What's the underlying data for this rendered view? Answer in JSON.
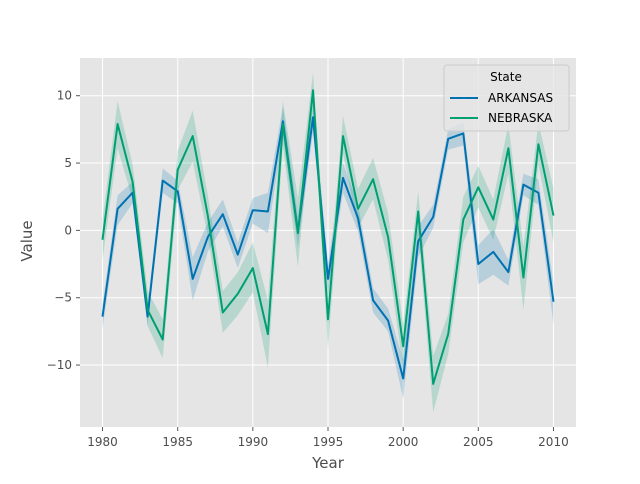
{
  "chart_data": {
    "type": "line",
    "xlabel": "Year",
    "ylabel": "Value",
    "xlim": [
      1978.5,
      2011.5
    ],
    "ylim": [
      -14.6,
      12.8
    ],
    "xticks": [
      1980,
      1985,
      1990,
      1995,
      2000,
      2005,
      2010
    ],
    "yticks": [
      -10,
      -5,
      0,
      5,
      10
    ],
    "ytick_labels": [
      "−10",
      "−5",
      "0",
      "5",
      "10"
    ],
    "grid": true,
    "legend": {
      "title": "State",
      "placement": "top-right"
    },
    "x": [
      1980,
      1981,
      1982,
      1983,
      1984,
      1985,
      1986,
      1987,
      1988,
      1989,
      1990,
      1991,
      1992,
      1993,
      1994,
      1995,
      1996,
      1997,
      1998,
      1999,
      2000,
      2001,
      2002,
      2003,
      2004,
      2005,
      2006,
      2007,
      2008,
      2009,
      2010
    ],
    "series": [
      {
        "name": "ARKANSAS",
        "color": "#0072b2",
        "values": [
          -6.4,
          1.6,
          2.8,
          -6.4,
          3.7,
          2.9,
          -3.6,
          -0.5,
          1.2,
          -1.8,
          1.5,
          1.4,
          8.1,
          -0.1,
          8.4,
          -3.6,
          3.9,
          0.9,
          -5.2,
          -6.7,
          -11.0,
          -0.8,
          1.0,
          6.8,
          7.2,
          -2.5,
          -1.6,
          -3.1,
          3.4,
          2.8,
          -5.3
        ],
        "lower": [
          -7.3,
          0.4,
          2.0,
          -7.1,
          2.8,
          2.0,
          -5.2,
          -1.6,
          0.3,
          -2.8,
          0.5,
          -0.2,
          7.0,
          -1.3,
          7.3,
          -4.6,
          2.8,
          -0.1,
          -6.1,
          -7.5,
          -12.5,
          -2.0,
          0.2,
          6.0,
          6.3,
          -4.0,
          -3.3,
          -4.1,
          2.6,
          1.9,
          -7.0
        ],
        "upper": [
          -5.5,
          2.6,
          3.6,
          -5.6,
          4.6,
          3.7,
          -2.0,
          0.6,
          2.3,
          -0.9,
          2.4,
          2.8,
          9.2,
          1.0,
          9.4,
          -2.5,
          5.0,
          1.9,
          -4.3,
          -5.8,
          -9.6,
          0.3,
          1.9,
          7.5,
          8.0,
          -1.1,
          0.1,
          -2.2,
          4.2,
          3.8,
          -3.9
        ]
      },
      {
        "name": "NEBRASKA",
        "color": "#009e73",
        "values": [
          -0.7,
          7.9,
          3.6,
          -5.9,
          -8.1,
          4.5,
          7.0,
          1.1,
          -6.1,
          -4.7,
          -2.8,
          -7.7,
          7.9,
          -0.2,
          10.4,
          -6.6,
          7.0,
          1.6,
          3.8,
          -0.5,
          -8.6,
          1.4,
          -11.4,
          -7.7,
          0.8,
          3.2,
          0.8,
          6.1,
          -3.5,
          6.4,
          1.1
        ],
        "lower": [
          -2.2,
          6.1,
          2.3,
          -7.1,
          -9.5,
          3.0,
          5.1,
          -0.4,
          -7.6,
          -6.3,
          -4.6,
          -10.2,
          6.3,
          -2.7,
          9.3,
          -8.8,
          5.7,
          0.2,
          2.3,
          -2.2,
          -10.3,
          -0.2,
          -13.5,
          -9.2,
          -0.9,
          1.7,
          -0.7,
          4.2,
          -5.9,
          4.9,
          -0.9
        ],
        "upper": [
          0.8,
          9.6,
          4.9,
          -4.5,
          -6.6,
          5.9,
          8.9,
          2.6,
          -4.5,
          -3.1,
          -0.9,
          -5.2,
          9.6,
          2.4,
          11.7,
          -4.5,
          8.5,
          3.1,
          5.4,
          1.3,
          -7.0,
          2.9,
          -9.3,
          -6.2,
          2.5,
          4.8,
          2.3,
          7.9,
          -1.2,
          8.0,
          3.1
        ]
      }
    ]
  }
}
